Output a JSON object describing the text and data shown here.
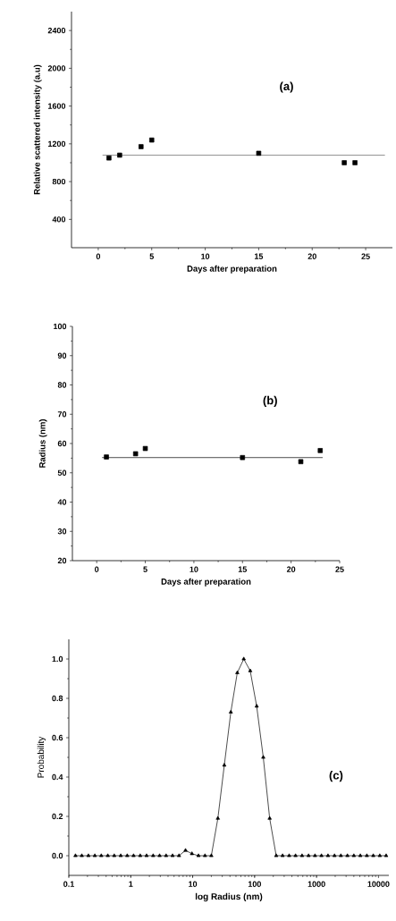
{
  "chart_data": [
    {
      "type": "scatter",
      "xlabel": "Days after preparation",
      "ylabel": "Relative scattered intensity (a.u)",
      "annotations": [
        "(a)"
      ],
      "xlim": [
        -2.5,
        27.5
      ],
      "ylim": [
        100,
        2600
      ],
      "xticks": [
        0,
        5,
        10,
        15,
        20,
        25
      ],
      "yticks": [
        400,
        800,
        1200,
        1600,
        2000,
        2400
      ],
      "series": [
        {
          "color": "#000000",
          "marker": "square",
          "x": [
            1,
            2,
            4,
            5,
            15,
            23,
            24
          ],
          "values": [
            1050,
            1080,
            1170,
            1240,
            1100,
            1000,
            1000
          ]
        },
        {
          "type": "line",
          "color": "#666666",
          "marker": "none",
          "line_style": "solid",
          "x": [
            0.4,
            26.8
          ],
          "values": [
            1080,
            1080
          ]
        }
      ]
    },
    {
      "type": "scatter",
      "xlabel": "Days after preparation",
      "ylabel": "Radius (nm)",
      "annotations": [
        "(b)"
      ],
      "xlim": [
        -2.5,
        25
      ],
      "ylim": [
        20,
        100
      ],
      "xticks": [
        0,
        5,
        10,
        15,
        20,
        25
      ],
      "yticks": [
        20,
        30,
        40,
        50,
        60,
        70,
        80,
        90,
        100
      ],
      "series": [
        {
          "color": "#000000",
          "marker": "square",
          "x": [
            1,
            4,
            5,
            15,
            21,
            23
          ],
          "values": [
            55.4,
            56.5,
            58.3,
            55.2,
            53.8,
            57.6
          ]
        },
        {
          "type": "line",
          "color": "#000000",
          "marker": "none",
          "line_style": "solid",
          "x": [
            0.55,
            23.25
          ],
          "values": [
            55.2,
            55.2
          ]
        }
      ]
    },
    {
      "type": "line",
      "xlabel": "log Radius (nm)",
      "ylabel": "Probability",
      "annotations": [
        "(c)"
      ],
      "log": "x",
      "xlim": [
        0.1,
        14700
      ],
      "ylim": [
        -0.1,
        1.1
      ],
      "xticks": [
        0.1,
        1,
        10,
        100,
        1000,
        10000
      ],
      "yticks": [
        {
          "value": 0,
          "label": "0.0"
        },
        {
          "value": 0.2,
          "label": "0.2"
        },
        {
          "value": 0.4,
          "label": "0.4"
        },
        {
          "value": 0.6,
          "label": "0.6"
        },
        {
          "value": 0.8,
          "label": "0.8"
        },
        {
          "value": 1,
          "label": "1.0"
        }
      ],
      "series": [
        {
          "color": "#000000",
          "marker": "triangle",
          "line_style": "solid",
          "x": [
            0.128,
            0.162,
            0.207,
            0.263,
            0.334,
            0.426,
            0.541,
            0.689,
            0.877,
            1.11,
            1.42,
            1.8,
            2.3,
            2.92,
            3.72,
            4.73,
            6.01,
            7.66,
            9.73,
            12.4,
            15.8,
            20.0,
            25.5,
            32.4,
            41.3,
            52.5,
            66.8,
            84.9,
            108,
            138,
            175,
            223,
            283,
            361,
            458,
            583,
            743,
            944,
            1200,
            1530,
            1950,
            2470,
            3150,
            4000,
            5090,
            6490,
            8240,
            10500,
            13300
          ],
          "values": [
            0,
            0,
            0,
            0,
            0,
            0,
            0,
            0,
            0,
            0,
            0,
            0,
            0,
            0,
            0,
            0,
            0,
            0.027,
            0.01,
            0,
            0,
            0,
            0.19,
            0.46,
            0.73,
            0.93,
            1.0,
            0.94,
            0.76,
            0.5,
            0.19,
            0,
            0,
            0,
            0,
            0,
            0,
            0,
            0,
            0,
            0,
            0,
            0,
            0,
            0,
            0,
            0,
            0,
            0
          ]
        }
      ]
    }
  ]
}
